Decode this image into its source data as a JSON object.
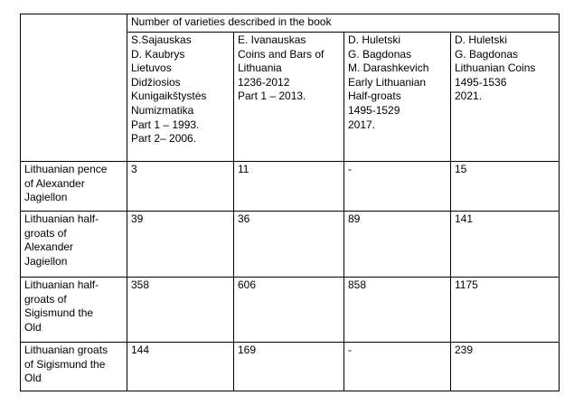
{
  "table": {
    "header_group": "Number of varieties described in the book",
    "columns": [
      [
        "S.Sajauskas",
        "D. Kaubrys",
        "Lietuvos",
        "Didžiosios",
        "Kunigaikštystės",
        "Numizmatika",
        "Part 1 – 1993.",
        "Part 2– 2006."
      ],
      [
        "E. Ivanauskas",
        "Coins and Bars of",
        "Lithuania",
        "1236-2012",
        "Part 1 – 2013."
      ],
      [
        "D. Huletski",
        "G. Bagdonas",
        "M. Darashkevich",
        "Early Lithuanian",
        "Half-groats",
        "1495-1529",
        "2017."
      ],
      [
        "D. Huletski",
        "G. Bagdonas",
        "Lithuanian Coins",
        "1495-1536",
        "2021."
      ]
    ],
    "rows": [
      {
        "label": [
          "Lithuanian pence",
          "of Alexander",
          "Jagiellon"
        ],
        "values": [
          "3",
          "11",
          "-",
          "15"
        ]
      },
      {
        "label": [
          "Lithuanian half-",
          "groats of",
          "Alexander",
          "Jagiellon"
        ],
        "values": [
          "39",
          "36",
          "89",
          "141"
        ]
      },
      {
        "label": [
          "Lithuanian half-",
          "groats of",
          "Sigismund the",
          "Old"
        ],
        "values": [
          "358",
          "606",
          "858",
          "1175"
        ]
      },
      {
        "label": [
          "Lithuanian groats",
          "of Sigismund the",
          "Old"
        ],
        "values": [
          "144",
          "169",
          "-",
          "239"
        ]
      }
    ]
  }
}
